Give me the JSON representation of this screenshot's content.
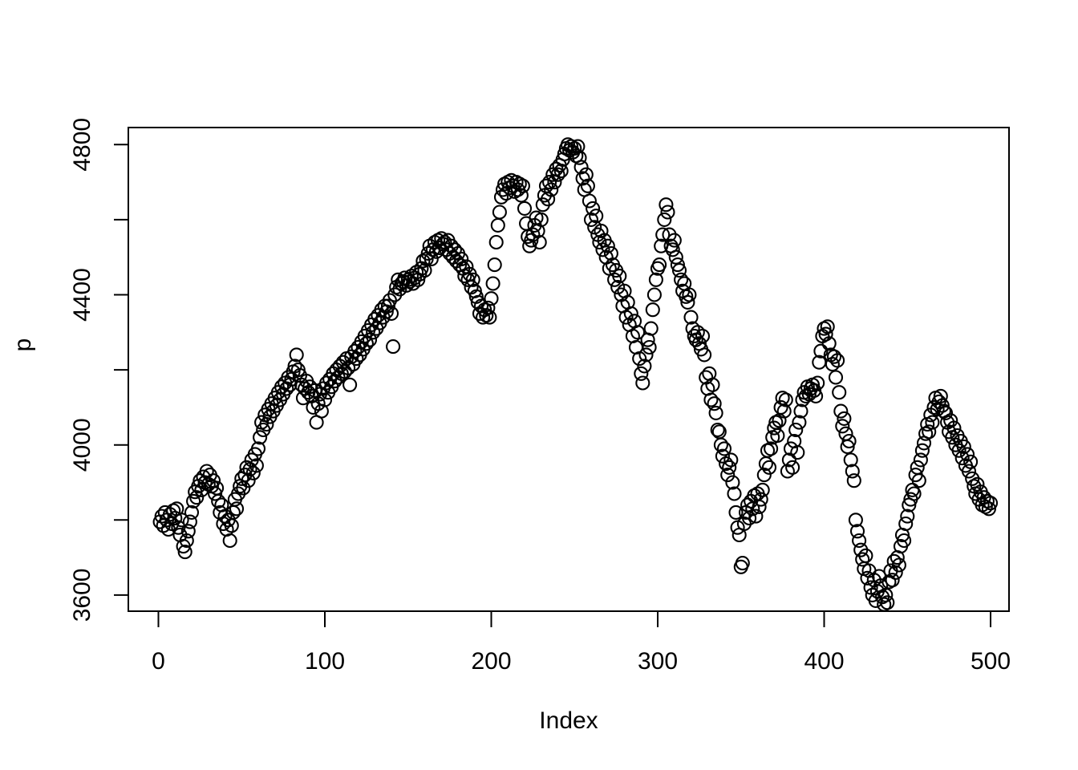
{
  "figure": {
    "background_color": "#ffffff",
    "stroke_color": "#000000"
  },
  "chart_data": {
    "type": "scatter",
    "title": "",
    "xlabel": "Index",
    "ylabel": "p",
    "marker": "open-circle",
    "grid": false,
    "legend": null,
    "x_ticks": [
      0,
      100,
      200,
      300,
      400,
      500
    ],
    "y_ticks_all": [
      3600,
      3800,
      4000,
      4200,
      4400,
      4600,
      4800
    ],
    "y_ticks_labeled": [
      3600,
      4000,
      4400,
      4800
    ],
    "xlim": [
      -18,
      511
    ],
    "ylim": [
      3555,
      4845
    ],
    "x_start_index": 1,
    "y_values": [
      3795,
      3810,
      3785,
      3820,
      3800,
      3775,
      3815,
      3790,
      3825,
      3805,
      3830,
      3780,
      3760,
      3800,
      3730,
      3715,
      3745,
      3770,
      3795,
      3820,
      3850,
      3875,
      3860,
      3890,
      3905,
      3880,
      3915,
      3900,
      3930,
      3895,
      3920,
      3890,
      3905,
      3870,
      3885,
      3850,
      3820,
      3840,
      3790,
      3810,
      3775,
      3800,
      3745,
      3785,
      3820,
      3855,
      3830,
      3870,
      3890,
      3910,
      3885,
      3920,
      3940,
      3905,
      3935,
      3960,
      3925,
      3975,
      3945,
      3990,
      4020,
      4060,
      4040,
      4080,
      4055,
      4095,
      4075,
      4110,
      4090,
      4125,
      4105,
      4140,
      4120,
      4155,
      4135,
      4165,
      4150,
      4180,
      4160,
      4175,
      4195,
      4210,
      4240,
      4200,
      4185,
      4160,
      4125,
      4150,
      4170,
      4140,
      4155,
      4130,
      4100,
      4145,
      4060,
      4110,
      4135,
      4090,
      4150,
      4120,
      4165,
      4140,
      4175,
      4155,
      4190,
      4170,
      4200,
      4180,
      4210,
      4190,
      4220,
      4195,
      4230,
      4205,
      4160,
      4235,
      4215,
      4250,
      4230,
      4260,
      4240,
      4275,
      4255,
      4290,
      4270,
      4305,
      4280,
      4320,
      4300,
      4335,
      4310,
      4345,
      4325,
      4360,
      4340,
      4370,
      4355,
      4370,
      4385,
      4350,
      4262,
      4400,
      4420,
      4440,
      4415,
      4430,
      4435,
      4445,
      4425,
      4440,
      4435,
      4450,
      4430,
      4445,
      4460,
      4440,
      4455,
      4470,
      4490,
      4465,
      4495,
      4510,
      4530,
      4495,
      4520,
      4540,
      4515,
      4545,
      4525,
      4550,
      4535,
      4540,
      4520,
      4545,
      4510,
      4530,
      4500,
      4520,
      4490,
      4510,
      4480,
      4495,
      4470,
      4450,
      4475,
      4440,
      4455,
      4420,
      4440,
      4410,
      4395,
      4380,
      4350,
      4370,
      4340,
      4360,
      4345,
      4365,
      4340,
      4390,
      4430,
      4480,
      4540,
      4585,
      4620,
      4660,
      4680,
      4695,
      4670,
      4700,
      4685,
      4705,
      4690,
      4675,
      4700,
      4680,
      4695,
      4665,
      4690,
      4630,
      4590,
      4555,
      4530,
      4545,
      4560,
      4585,
      4605,
      4570,
      4540,
      4600,
      4640,
      4665,
      4690,
      4655,
      4700,
      4680,
      4720,
      4700,
      4735,
      4720,
      4745,
      4730,
      4760,
      4775,
      4790,
      4800,
      4785,
      4795,
      4780,
      4790,
      4770,
      4795,
      4765,
      4740,
      4710,
      4680,
      4720,
      4690,
      4650,
      4600,
      4630,
      4580,
      4610,
      4560,
      4540,
      4570,
      4520,
      4545,
      4500,
      4530,
      4470,
      4510,
      4480,
      4440,
      4465,
      4420,
      4450,
      4400,
      4370,
      4410,
      4340,
      4380,
      4320,
      4350,
      4290,
      4330,
      4260,
      4300,
      4230,
      4190,
      4165,
      4210,
      4240,
      4280,
      4260,
      4310,
      4360,
      4400,
      4440,
      4470,
      4480,
      4530,
      4560,
      4600,
      4640,
      4620,
      4560,
      4530,
      4520,
      4545,
      4500,
      4480,
      4465,
      4440,
      4410,
      4430,
      4395,
      4380,
      4400,
      4340,
      4310,
      4290,
      4280,
      4300,
      4270,
      4255,
      4290,
      4240,
      4180,
      4150,
      4190,
      4120,
      4160,
      4110,
      4085,
      4040,
      4035,
      4000,
      3970,
      3990,
      3950,
      3920,
      3940,
      3960,
      3900,
      3870,
      3820,
      3780,
      3760,
      3675,
      3685,
      3790,
      3820,
      3840,
      3805,
      3850,
      3830,
      3865,
      3810,
      3870,
      3835,
      3855,
      3880,
      3920,
      3950,
      3985,
      3940,
      3990,
      4020,
      4045,
      4060,
      4025,
      4065,
      4100,
      4125,
      4090,
      4120,
      3930,
      3960,
      3990,
      3940,
      4010,
      4040,
      3980,
      4060,
      4090,
      4120,
      4140,
      4130,
      4155,
      4135,
      4150,
      4160,
      4145,
      4130,
      4165,
      4220,
      4250,
      4290,
      4310,
      4295,
      4315,
      4270,
      4240,
      4215,
      4235,
      4180,
      4225,
      4140,
      4090,
      4050,
      4070,
      4030,
      3995,
      4010,
      3960,
      3930,
      3905,
      3800,
      3770,
      3745,
      3720,
      3695,
      3670,
      3705,
      3645,
      3665,
      3620,
      3600,
      3640,
      3585,
      3610,
      3650,
      3625,
      3595,
      3575,
      3600,
      3580,
      3635,
      3665,
      3640,
      3690,
      3660,
      3700,
      3680,
      3730,
      3760,
      3745,
      3790,
      3810,
      3840,
      3855,
      3880,
      3870,
      3920,
      3940,
      3905,
      3960,
      3985,
      4005,
      4030,
      4055,
      4035,
      4080,
      4060,
      4100,
      4125,
      4095,
      4115,
      4130,
      4105,
      4090,
      4085,
      4060,
      4035,
      4065,
      4020,
      4045,
      4000,
      4025,
      3985,
      4010,
      3965,
      3995,
      3945,
      3975,
      3930,
      3955,
      3910,
      3890,
      3870,
      3895,
      3855,
      3875,
      3840,
      3860,
      3835,
      3850,
      3830,
      3845
    ]
  }
}
